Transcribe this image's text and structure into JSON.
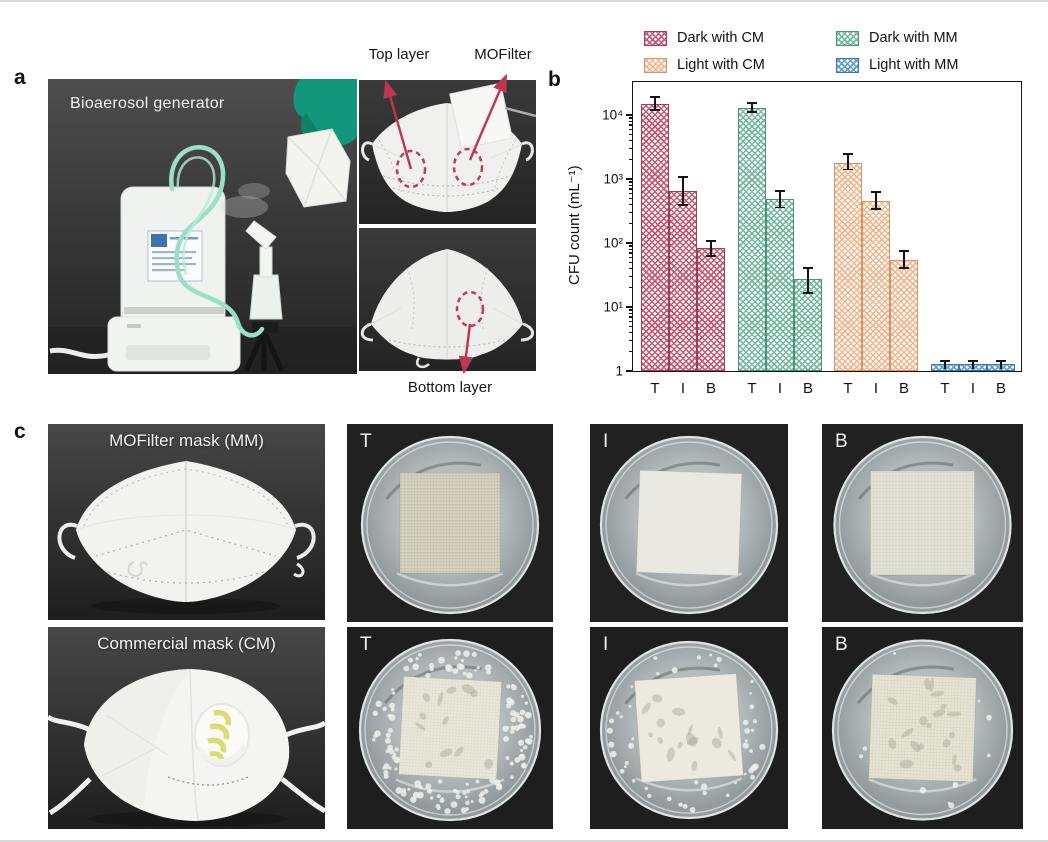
{
  "figure": {
    "panel_a": {
      "label": "a",
      "photo_caption": "Bioaerosol generator",
      "annotations": {
        "top_layer": "Top layer",
        "mofilter": "MOFilter",
        "bottom_layer": "Bottom layer"
      }
    },
    "panel_b": {
      "label": "b"
    },
    "panel_c": {
      "label": "c",
      "rows": [
        {
          "mask_label": "MOFilter mask (MM)",
          "dishes": [
            "T",
            "I",
            "B"
          ]
        },
        {
          "mask_label": "Commercial mask (CM)",
          "dishes": [
            "T",
            "I",
            "B"
          ]
        }
      ]
    }
  },
  "chart_data": {
    "type": "bar",
    "scale": "log",
    "categories": [
      "T",
      "I",
      "B"
    ],
    "series": [
      {
        "name": "Dark with CM",
        "color": "#c75871",
        "border": "#a93a54",
        "values": [
          15000,
          650,
          83
        ],
        "errors_minus": [
          2500,
          250,
          18
        ],
        "errors_plus": [
          3500,
          400,
          22
        ]
      },
      {
        "name": "Dark with MM",
        "color": "#74b99c",
        "border": "#4d9377",
        "values": [
          13000,
          480,
          27
        ],
        "errors_minus": [
          1500,
          110,
          10
        ],
        "errors_plus": [
          1800,
          150,
          12
        ]
      },
      {
        "name": "Light with CM",
        "color": "#f0b68d",
        "border": "#dd9264",
        "values": [
          1800,
          460,
          54
        ],
        "errors_minus": [
          350,
          110,
          12
        ],
        "errors_plus": [
          550,
          150,
          18
        ]
      },
      {
        "name": "Light with MM",
        "color": "#5d9bd3",
        "border": "#3a77b2",
        "values": [
          1,
          1,
          1
        ],
        "errors_minus": [
          0.2,
          0.2,
          0.2
        ],
        "errors_plus": [
          0.2,
          0.2,
          0.2
        ]
      }
    ],
    "ylabel": "CFU count (mL⁻¹)",
    "yticks": [
      "1",
      "10¹",
      "10²",
      "10³",
      "10⁴"
    ],
    "ylim": [
      1,
      30000
    ],
    "legend_position": "top",
    "grid": false
  }
}
